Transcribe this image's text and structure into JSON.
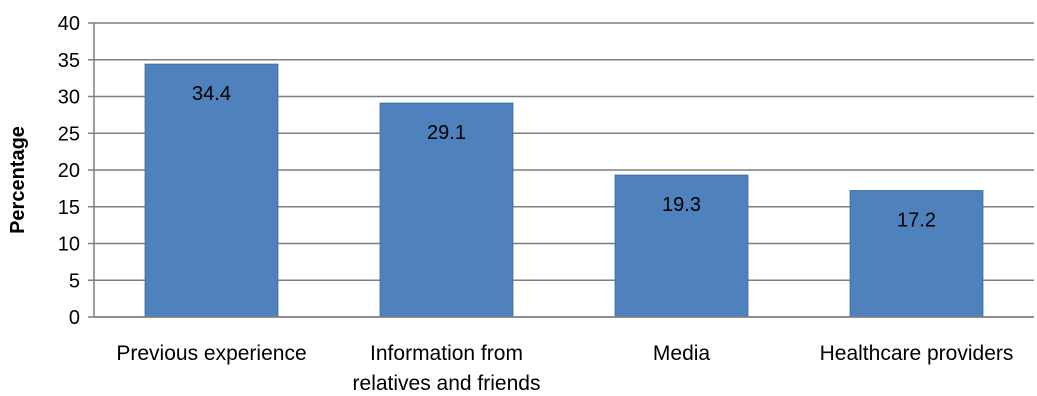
{
  "chart_data": {
    "type": "bar",
    "categories": [
      "Previous experience",
      "Information from relatives and friends",
      "Media",
      "Healthcare providers"
    ],
    "category_lines": [
      [
        "Previous experience"
      ],
      [
        "Information from",
        "relatives and friends"
      ],
      [
        "Media"
      ],
      [
        "Healthcare providers"
      ]
    ],
    "values": [
      34.4,
      29.1,
      19.3,
      17.2
    ],
    "data_labels": [
      "34.4",
      "29.1",
      "19.3",
      "17.2"
    ],
    "title": "",
    "xlabel": "",
    "ylabel": "Percentage",
    "ylim": [
      0,
      40
    ],
    "yticks": [
      0,
      5,
      10,
      15,
      20,
      25,
      30,
      35,
      40
    ],
    "grid": true,
    "legend": "none",
    "colors": {
      "bar_fill": "#4f81bd",
      "bar_stroke": "#3f6fa8",
      "grid": "#7f7f7f",
      "axis": "#7f7f7f"
    }
  }
}
